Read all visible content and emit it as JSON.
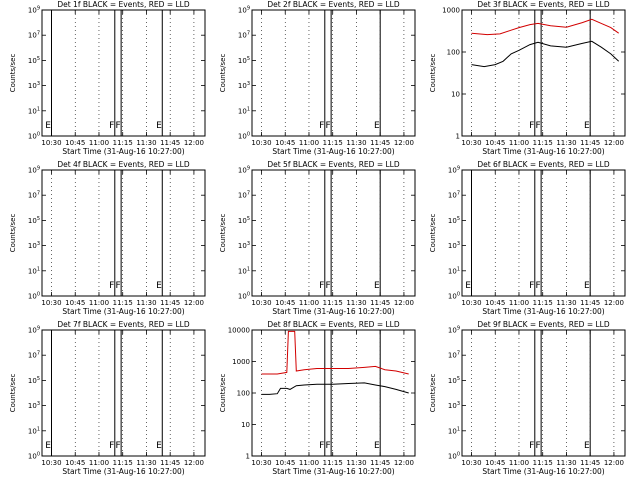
{
  "colors": {
    "events": "#000000",
    "lld": "#d20000",
    "axes": "#000000",
    "background": "#ffffff"
  },
  "chart_data": [
    {
      "type": "line",
      "title": "Det 1f BLACK = Events, RED = LLD",
      "xlabel": "Start Time (31-Aug-16 10:27:00)",
      "ylabel": "Counts/sec",
      "xticks": [
        "10:30",
        "10:45",
        "11:00",
        "11:15",
        "11:30",
        "11:45",
        "12:00"
      ],
      "yscale": "log",
      "ylim": [
        1,
        1000000000
      ],
      "yticks": [
        "10^0",
        "10^1",
        "10^3",
        "10^5",
        "10^7",
        "10^9"
      ],
      "markers": [
        {
          "x": "10:30",
          "label": "E"
        },
        {
          "x": "11:10",
          "label": "F"
        },
        {
          "x": "11:14",
          "label": "F"
        },
        {
          "x": "11:40",
          "label": "E"
        }
      ],
      "grid": "dotted vertical",
      "series": []
    },
    {
      "type": "line",
      "title": "Det 2f BLACK = Events, RED = LLD",
      "xlabel": "Start Time (31-Aug-16 10:27:00)",
      "ylabel": "Counts/sec",
      "xticks": [
        "10:30",
        "10:45",
        "11:00",
        "11:15",
        "11:30",
        "11:45",
        "12:00"
      ],
      "yscale": "log",
      "ylim": [
        1,
        1000000000
      ],
      "yticks": [
        "10^0",
        "10^1",
        "10^3",
        "10^5",
        "10^7",
        "10^9"
      ],
      "markers": [
        {
          "x": "11:10",
          "label": "F"
        },
        {
          "x": "11:14",
          "label": "F"
        },
        {
          "x": "11:45",
          "label": "E"
        }
      ],
      "grid": "dotted vertical",
      "series": []
    },
    {
      "type": "line",
      "title": "Det 3f BLACK = Events, RED = LLD",
      "xlabel": "Start Time (31-Aug-16 10:27:00)",
      "ylabel": "Counts/sec",
      "xticks": [
        "10:30",
        "10:45",
        "11:00",
        "11:15",
        "11:30",
        "11:45",
        "12:00"
      ],
      "yscale": "log",
      "ylim": [
        1,
        1000
      ],
      "yticks": [
        "1",
        "10",
        "100",
        "1000"
      ],
      "markers": [
        {
          "x": "11:10",
          "label": "F"
        },
        {
          "x": "11:14",
          "label": "F"
        },
        {
          "x": "11:45",
          "label": "E"
        }
      ],
      "grid": "dotted vertical",
      "series": [
        {
          "color": "lld",
          "x": [
            "10:30",
            "10:40",
            "10:48",
            "10:55",
            "11:00",
            "11:07",
            "11:12",
            "11:20",
            "11:30",
            "11:40",
            "11:46",
            "11:52",
            "11:58",
            "12:03"
          ],
          "values": [
            280,
            260,
            270,
            330,
            380,
            450,
            480,
            420,
            390,
            500,
            600,
            480,
            380,
            280
          ]
        },
        {
          "color": "events",
          "x": [
            "10:30",
            "10:38",
            "10:45",
            "10:50",
            "10:55",
            "11:00",
            "11:07",
            "11:12",
            "11:20",
            "11:30",
            "11:40",
            "11:46",
            "11:52",
            "11:58",
            "12:03"
          ],
          "values": [
            50,
            45,
            50,
            60,
            90,
            110,
            150,
            170,
            140,
            130,
            160,
            180,
            130,
            90,
            60
          ]
        }
      ]
    },
    {
      "type": "line",
      "title": "Det 4f BLACK = Events, RED = LLD",
      "xlabel": "Start Time (31-Aug-16 10:27:00)",
      "ylabel": "Counts/sec",
      "xticks": [
        "10:30",
        "10:45",
        "11:00",
        "11:15",
        "11:30",
        "11:45",
        "12:00"
      ],
      "yscale": "log",
      "ylim": [
        1,
        1000000000
      ],
      "yticks": [
        "10^0",
        "10^1",
        "10^3",
        "10^5",
        "10^7",
        "10^9"
      ],
      "markers": [
        {
          "x": "11:10",
          "label": "F"
        },
        {
          "x": "11:14",
          "label": "F"
        },
        {
          "x": "11:40",
          "label": "E"
        }
      ],
      "grid": "dotted vertical",
      "series": []
    },
    {
      "type": "line",
      "title": "Det 5f BLACK = Events, RED = LLD",
      "xlabel": "Start Time (31-Aug-16 10:27:00)",
      "ylabel": "Counts/sec",
      "xticks": [
        "10:30",
        "10:45",
        "11:00",
        "11:15",
        "11:30",
        "11:45",
        "12:00"
      ],
      "yscale": "log",
      "ylim": [
        1,
        1000000000
      ],
      "yticks": [
        "10^0",
        "10^1",
        "10^3",
        "10^5",
        "10^7",
        "10^9"
      ],
      "markers": [
        {
          "x": "11:10",
          "label": "F"
        },
        {
          "x": "11:14",
          "label": "F"
        },
        {
          "x": "11:45",
          "label": "E"
        }
      ],
      "grid": "dotted vertical",
      "series": []
    },
    {
      "type": "line",
      "title": "Det 6f BLACK = Events, RED = LLD",
      "xlabel": "Start Time (31-Aug-16 10:27:00)",
      "ylabel": "Counts/sec",
      "xticks": [
        "10:30",
        "10:45",
        "11:00",
        "11:15",
        "11:30",
        "11:45",
        "12:00"
      ],
      "yscale": "log",
      "ylim": [
        1,
        1000000000
      ],
      "yticks": [
        "10^0",
        "10^1",
        "10^3",
        "10^5",
        "10^7",
        "10^9"
      ],
      "markers": [
        {
          "x": "10:30",
          "label": "E"
        },
        {
          "x": "11:10",
          "label": "F"
        },
        {
          "x": "11:14",
          "label": "F"
        },
        {
          "x": "11:45",
          "label": "E"
        }
      ],
      "grid": "dotted vertical",
      "series": []
    },
    {
      "type": "line",
      "title": "Det 7f BLACK = Events, RED = LLD",
      "xlabel": "Start Time (31-Aug-16 10:27:00)",
      "ylabel": "Counts/sec",
      "xticks": [
        "10:30",
        "10:45",
        "11:00",
        "11:15",
        "11:30",
        "11:45",
        "12:00"
      ],
      "yscale": "log",
      "ylim": [
        1,
        1000000000
      ],
      "yticks": [
        "10^0",
        "10^1",
        "10^3",
        "10^5",
        "10^7",
        "10^9"
      ],
      "markers": [
        {
          "x": "10:30",
          "label": "E"
        },
        {
          "x": "11:10",
          "label": "F"
        },
        {
          "x": "11:14",
          "label": "F"
        },
        {
          "x": "11:40",
          "label": "E"
        }
      ],
      "grid": "dotted vertical",
      "series": []
    },
    {
      "type": "line",
      "title": "Det 8f BLACK = Events, RED = LLD",
      "xlabel": "Start Time (31-Aug-16 10:27:00)",
      "ylabel": "Counts/sec",
      "xticks": [
        "10:30",
        "10:45",
        "11:00",
        "11:15",
        "11:30",
        "11:45",
        "12:00"
      ],
      "yscale": "log",
      "ylim": [
        1,
        10000
      ],
      "yticks": [
        "1",
        "10",
        "100",
        "1000",
        "10000"
      ],
      "markers": [
        {
          "x": "11:10",
          "label": "F"
        },
        {
          "x": "11:14",
          "label": "F"
        },
        {
          "x": "11:45",
          "label": "E"
        }
      ],
      "grid": "dotted vertical",
      "series": [
        {
          "color": "lld",
          "x": [
            "10:30",
            "10:40",
            "10:46",
            "10:47",
            "10:51",
            "10:52",
            "10:57",
            "11:05",
            "11:15",
            "11:25",
            "11:35",
            "11:42",
            "11:48",
            "11:55",
            "12:03"
          ],
          "values": [
            400,
            400,
            450,
            9000,
            9000,
            500,
            550,
            600,
            600,
            600,
            650,
            700,
            550,
            500,
            400
          ]
        },
        {
          "color": "events",
          "x": [
            "10:30",
            "10:35",
            "10:40",
            "10:42",
            "10:46",
            "10:48",
            "10:52",
            "10:57",
            "11:05",
            "11:15",
            "11:25",
            "11:35",
            "11:42",
            "11:48",
            "11:55",
            "12:03"
          ],
          "values": [
            90,
            90,
            95,
            140,
            140,
            130,
            170,
            180,
            190,
            190,
            200,
            210,
            180,
            160,
            130,
            100
          ]
        }
      ]
    },
    {
      "type": "line",
      "title": "Det 9f BLACK = Events, RED = LLD",
      "xlabel": "Start Time (31-Aug-16 10:27:00)",
      "ylabel": "Counts/sec",
      "xticks": [
        "10:30",
        "10:45",
        "11:00",
        "11:15",
        "11:30",
        "11:45",
        "12:00"
      ],
      "yscale": "log",
      "ylim": [
        1,
        1000000000
      ],
      "yticks": [
        "10^0",
        "10^1",
        "10^3",
        "10^5",
        "10^7",
        "10^9"
      ],
      "markers": [
        {
          "x": "11:10",
          "label": "F"
        },
        {
          "x": "11:14",
          "label": "F"
        },
        {
          "x": "11:45",
          "label": "E"
        }
      ],
      "grid": "dotted vertical",
      "series": []
    }
  ]
}
